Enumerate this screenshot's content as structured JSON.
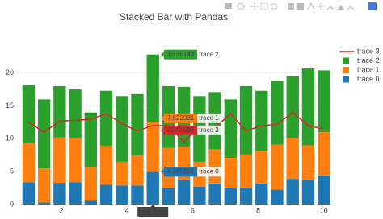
{
  "chart_data": {
    "type": "bar",
    "barmode": "stack",
    "title": "Stacked Bar with Pandas",
    "x": [
      1,
      1.473684,
      1.947368,
      2.421053,
      2.894737,
      3.368421,
      3.842105,
      4.315789,
      4.789474,
      5.263158,
      5.736842,
      6.210526,
      6.684211,
      7.157895,
      7.631579,
      8.105263,
      8.578947,
      9.052632,
      9.526316,
      10
    ],
    "series": [
      {
        "name": "trace 0",
        "type": "bar",
        "color": "#1f77b4",
        "values": [
          3.4,
          0.3,
          3.3,
          3.4,
          0.6,
          3.0,
          2.9,
          2.9,
          4.985801,
          2.5,
          3.8,
          2.7,
          3.2,
          2.5,
          2.6,
          3.2,
          2.3,
          3.9,
          3.8,
          4.4
        ]
      },
      {
        "name": "trace 1",
        "type": "bar",
        "color": "#ff7f0e",
        "values": [
          5.9,
          5.2,
          6.9,
          6.7,
          5.1,
          5.9,
          3.6,
          4.6,
          7.522031,
          6.1,
          5.0,
          3.8,
          5.2,
          4.6,
          5.0,
          5.0,
          6.8,
          6.2,
          5.2,
          6.6
        ]
      },
      {
        "name": "trace 2",
        "type": "bar",
        "color": "#2ca02c",
        "values": [
          8.9,
          10.5,
          7.8,
          7.4,
          8.3,
          8.4,
          10.0,
          9.3,
          10.30143,
          9.4,
          9.1,
          10.0,
          8.7,
          8.9,
          10.4,
          9.1,
          9.7,
          9.4,
          11.7,
          9.4
        ]
      },
      {
        "name": "trace 3",
        "type": "line",
        "color": "#d62728",
        "values": [
          12.5,
          11.0,
          12.7,
          12.8,
          13.0,
          13.8,
          12.3,
          11.2,
          12.02096,
          12.0,
          9.5,
          11.8,
          11.7,
          13.8,
          11.2,
          12.0,
          12.2,
          14.0,
          12.0,
          11.5
        ]
      }
    ],
    "xlim": [
      0.62,
      10.23
    ],
    "xticks": [
      2,
      4,
      6,
      8,
      10
    ],
    "ylim": [
      0,
      24
    ],
    "yticks": [
      0,
      5,
      10,
      15,
      20
    ],
    "grid": true
  }
}
